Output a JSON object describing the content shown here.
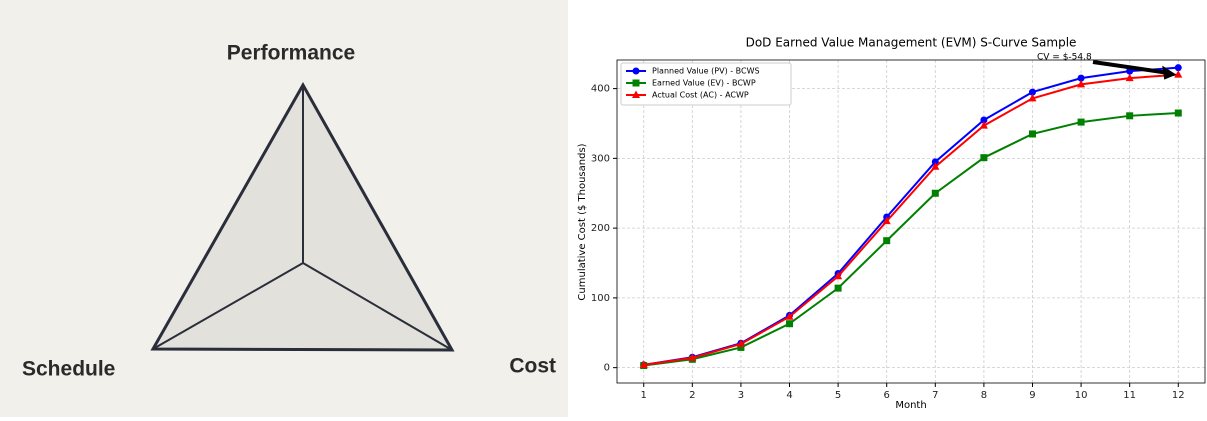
{
  "diagram": {
    "labels": [
      "Performance",
      "Schedule",
      "Cost"
    ]
  },
  "chart_data": {
    "type": "line",
    "title": "DoD Earned Value Management (EVM) S-Curve Sample",
    "x_label": "Month",
    "y_label": "Cumulative Cost ($ Thousands)",
    "x": [
      1,
      2,
      3,
      4,
      5,
      6,
      7,
      8,
      9,
      10,
      11,
      12
    ],
    "series": [
      {
        "name": "Planned Value (PV) - BCWS",
        "color": "#0000ff",
        "marker": "circle",
        "values": [
          4,
          15,
          35,
          75,
          135,
          216,
          295,
          355,
          395,
          415,
          425,
          430
        ]
      },
      {
        "name": "Earned Value (EV) - BCWP",
        "color": "#008000",
        "marker": "square",
        "values": [
          3,
          12,
          29,
          63,
          114,
          182,
          250,
          301,
          335,
          352,
          361,
          365
        ]
      },
      {
        "name": "Actual Cost (AC) - ACWP",
        "color": "#ff0000",
        "marker": "triangle",
        "values": [
          4,
          14,
          34,
          73,
          131,
          210,
          288,
          347,
          386,
          406,
          415,
          420
        ]
      }
    ],
    "annotation": "CV = $-54.8",
    "xlim": [
      0.45,
      12.55
    ],
    "ylim": [
      -22,
      441
    ],
    "xticks": [
      1,
      2,
      3,
      4,
      5,
      6,
      7,
      8,
      9,
      10,
      11,
      12
    ],
    "yticks": [
      0,
      100,
      200,
      300,
      400
    ],
    "grid": true,
    "legend": "upper-left"
  }
}
